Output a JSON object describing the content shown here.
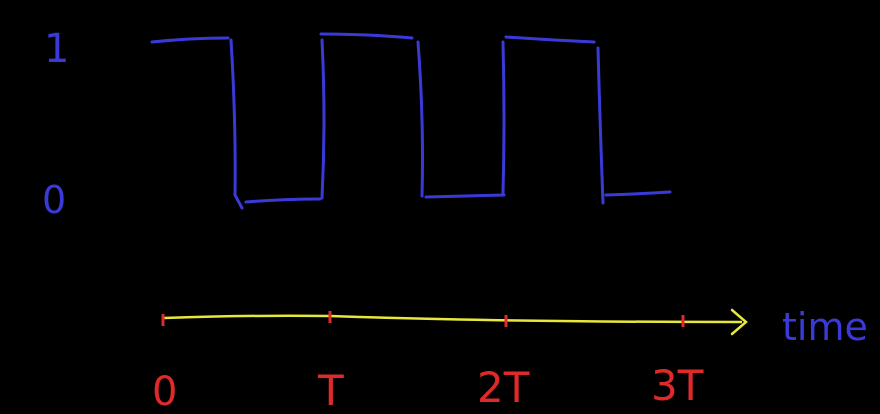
{
  "y_labels": {
    "high": "1",
    "low": "0"
  },
  "x_axis": {
    "label": "time",
    "ticks": [
      "0",
      "T",
      "2T",
      "3T"
    ]
  },
  "signal": {
    "levels": [
      1,
      0,
      1,
      0,
      1,
      0
    ]
  },
  "colors": {
    "background": "#000000",
    "signal": "#3a3ad8",
    "axis": "#e8e83a",
    "ticks": "#e02a2a",
    "labels": "#3a3ad8"
  }
}
